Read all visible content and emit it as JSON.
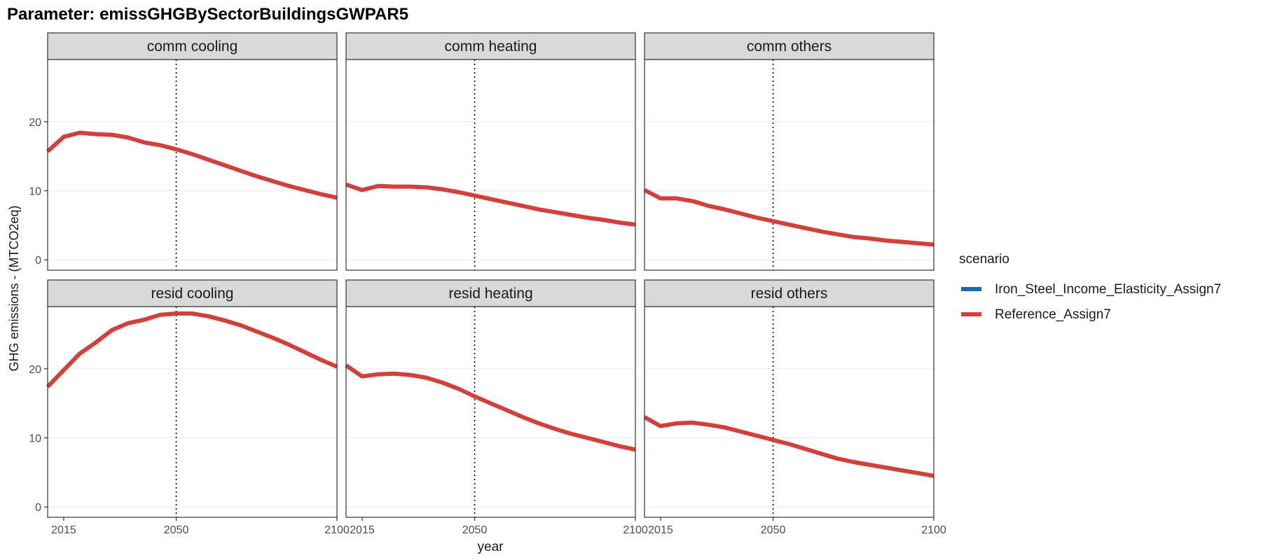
{
  "chart_data": {
    "type": "line",
    "title": "Parameter: emissGHGBySectorBuildingsGWPAR5",
    "xlabel": "year",
    "ylabel": "GHG emissions - (MTCO2eq)",
    "xlim": [
      2010,
      2100
    ],
    "x_ticks": [
      2015,
      2050,
      2100
    ],
    "reference_line_x": 2050,
    "row_ylims": [
      [
        -1.5,
        29
      ],
      [
        -1.5,
        29
      ]
    ],
    "row_yticks": [
      [
        0,
        10,
        20
      ],
      [
        0,
        10,
        20
      ]
    ],
    "grid": true,
    "legend_placement": "right",
    "legend": {
      "title": "scenario",
      "entries": [
        {
          "name": "Iron_Steel_Income_Elasticity_Assign7",
          "color": "#2166ac"
        },
        {
          "name": "Reference_Assign7",
          "color": "#d1403a"
        }
      ]
    },
    "x": [
      2010,
      2015,
      2020,
      2025,
      2030,
      2035,
      2040,
      2045,
      2050,
      2055,
      2060,
      2065,
      2070,
      2075,
      2080,
      2085,
      2090,
      2095,
      2100
    ],
    "panels": [
      {
        "label": "comm cooling",
        "row": 0,
        "col": 0,
        "series": [
          {
            "name": "Reference_Assign7",
            "values": [
              15.7,
              17.8,
              18.4,
              18.2,
              18.1,
              17.7,
              17.0,
              16.6,
              16.0,
              15.3,
              14.5,
              13.7,
              12.9,
              12.1,
              11.4,
              10.7,
              10.1,
              9.5,
              9.0
            ]
          }
        ]
      },
      {
        "label": "comm heating",
        "row": 0,
        "col": 1,
        "series": [
          {
            "name": "Reference_Assign7",
            "values": [
              10.9,
              10.1,
              10.7,
              10.6,
              10.6,
              10.5,
              10.2,
              9.8,
              9.3,
              8.8,
              8.3,
              7.8,
              7.3,
              6.9,
              6.5,
              6.1,
              5.8,
              5.4,
              5.1
            ]
          }
        ]
      },
      {
        "label": "comm others",
        "row": 0,
        "col": 2,
        "series": [
          {
            "name": "Reference_Assign7",
            "values": [
              10.1,
              8.9,
              8.9,
              8.5,
              7.8,
              7.3,
              6.7,
              6.1,
              5.6,
              5.1,
              4.6,
              4.1,
              3.7,
              3.3,
              3.1,
              2.8,
              2.6,
              2.4,
              2.2
            ]
          }
        ]
      },
      {
        "label": "resid cooling",
        "row": 1,
        "col": 0,
        "series": [
          {
            "name": "Reference_Assign7",
            "values": [
              17.4,
              19.8,
              22.2,
              23.8,
              25.6,
              26.6,
              27.1,
              27.8,
              28.0,
              28.0,
              27.6,
              27.0,
              26.3,
              25.4,
              24.5,
              23.5,
              22.4,
              21.3,
              20.3
            ]
          }
        ]
      },
      {
        "label": "resid heating",
        "row": 1,
        "col": 1,
        "series": [
          {
            "name": "Reference_Assign7",
            "values": [
              20.5,
              18.9,
              19.2,
              19.3,
              19.1,
              18.7,
              18.0,
              17.1,
              16.0,
              15.0,
              14.0,
              13.0,
              12.1,
              11.3,
              10.6,
              10.0,
              9.4,
              8.8,
              8.3
            ]
          }
        ]
      },
      {
        "label": "resid others",
        "row": 1,
        "col": 2,
        "series": [
          {
            "name": "Reference_Assign7",
            "values": [
              13.0,
              11.7,
              12.1,
              12.2,
              11.9,
              11.5,
              10.9,
              10.3,
              9.7,
              9.1,
              8.4,
              7.7,
              7.0,
              6.5,
              6.1,
              5.7,
              5.3,
              4.9,
              4.5
            ]
          }
        ]
      }
    ]
  }
}
